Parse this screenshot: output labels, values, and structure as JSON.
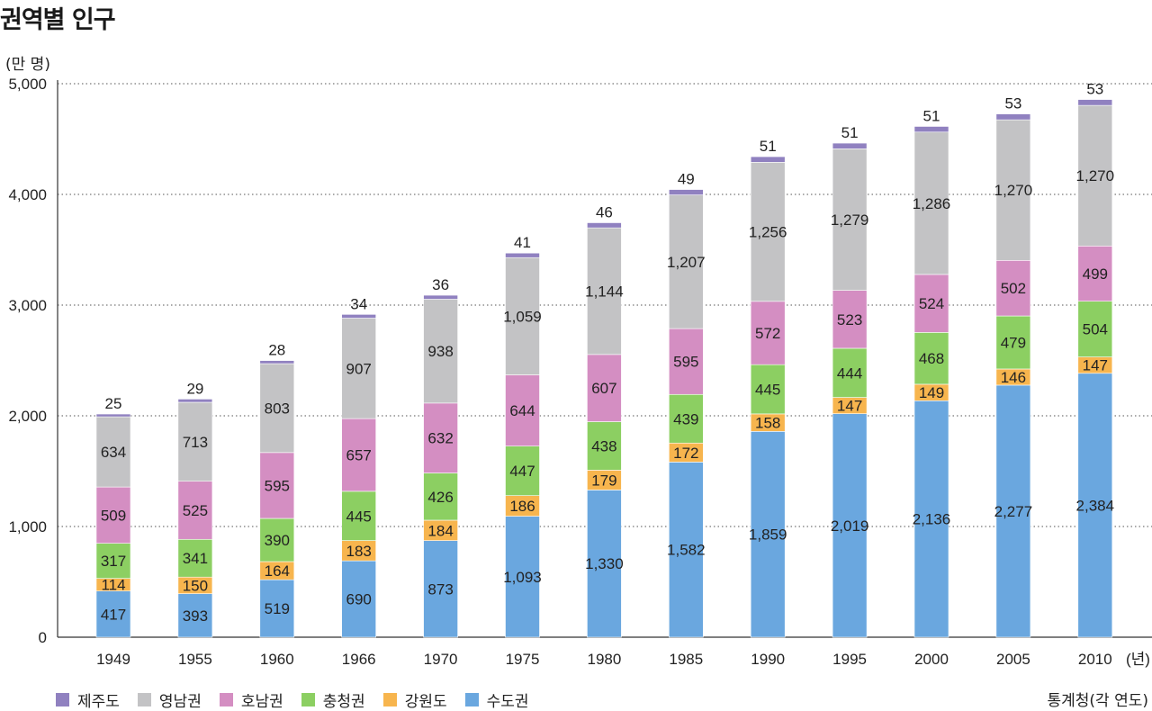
{
  "title": "권역별 인구",
  "y_unit": "(만 명)",
  "x_unit": "(년)",
  "source": "통계청(각 연도)",
  "chart_data": {
    "type": "bar",
    "stacked": true,
    "title": "권역별 인구",
    "xlabel": "",
    "ylabel": "(만 명)",
    "ylim": [
      0,
      5000
    ],
    "yticks": [
      0,
      1000,
      2000,
      3000,
      4000,
      5000
    ],
    "ytick_labels": [
      "0",
      "1,000",
      "2,000",
      "3,000",
      "4,000",
      "5,000"
    ],
    "grid": "horizontal dotted",
    "legend_position": "bottom",
    "categories": [
      "1949",
      "1955",
      "1960",
      "1966",
      "1970",
      "1975",
      "1980",
      "1985",
      "1990",
      "1995",
      "2000",
      "2005",
      "2010"
    ],
    "series": [
      {
        "name": "수도권",
        "color": "#6aa7df",
        "values": [
          417,
          393,
          519,
          690,
          873,
          1093,
          1330,
          1582,
          1859,
          2019,
          2136,
          2277,
          2384
        ]
      },
      {
        "name": "강원도",
        "color": "#f7b54e",
        "values": [
          114,
          150,
          164,
          183,
          184,
          186,
          179,
          172,
          158,
          147,
          149,
          146,
          147
        ]
      },
      {
        "name": "충청권",
        "color": "#8ccf62",
        "values": [
          317,
          341,
          390,
          445,
          426,
          447,
          438,
          439,
          445,
          444,
          468,
          479,
          504
        ]
      },
      {
        "name": "호남권",
        "color": "#d48ec2",
        "values": [
          509,
          525,
          595,
          657,
          632,
          644,
          607,
          595,
          572,
          523,
          524,
          502,
          499
        ]
      },
      {
        "name": "영남권",
        "color": "#c3c3c5",
        "values": [
          634,
          713,
          803,
          907,
          938,
          1059,
          1144,
          1207,
          1256,
          1279,
          1286,
          1270,
          1270
        ]
      },
      {
        "name": "제주도",
        "color": "#9081c0",
        "values": [
          25,
          29,
          28,
          34,
          36,
          41,
          46,
          49,
          51,
          51,
          51,
          53,
          53
        ]
      }
    ],
    "legend_order": [
      "제주도",
      "영남권",
      "호남권",
      "충청권",
      "강원도",
      "수도권"
    ]
  }
}
